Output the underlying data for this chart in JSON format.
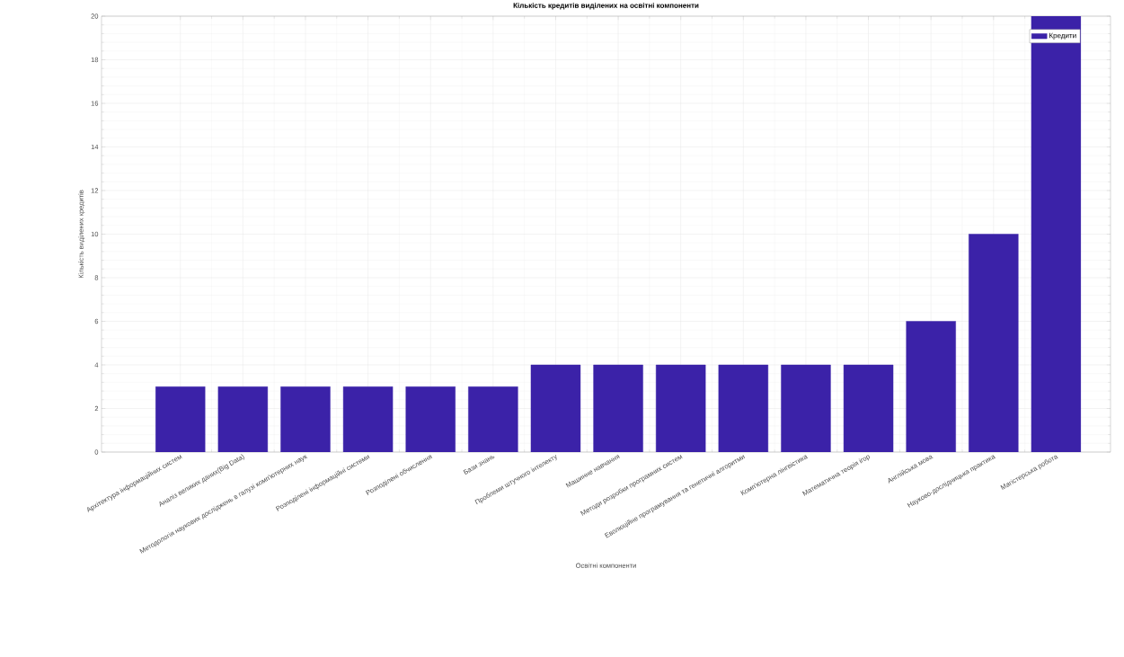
{
  "chart_data": {
    "type": "bar",
    "title": "Кількість кредитів виділених на освітні компоненти",
    "xlabel": "Освітні компоненти",
    "ylabel": "Кількість виділених кредитів",
    "categories": [
      "Архітектура інформаційних систем",
      "Аналіз великих даних(Big Data)",
      "Методологія наукових досліджень в галузі комп'ютерних наук",
      "Розподілені інформаційні системи",
      "Розподілені обчислення",
      "Бази знань",
      "Проблеми штучного інтелекту",
      "Машинне навчання",
      "Методи розробки програмних систем",
      "Еволюційне програмування та генетичні алгоритми",
      "Комп'ютерна лінгвістика",
      "Математична теорія ігор",
      "Англійська мова",
      "Науково-дослідницька практика",
      "Магістерська робота"
    ],
    "series": [
      {
        "name": "Кредити",
        "color": "#3b22a8",
        "values": [
          3,
          3,
          3,
          3,
          3,
          3,
          4,
          4,
          4,
          4,
          4,
          4,
          6,
          10,
          20
        ]
      }
    ],
    "ylim": [
      0,
      20
    ],
    "yticks": [
      0,
      2,
      4,
      6,
      8,
      10,
      12,
      14,
      16,
      18,
      20
    ],
    "grid": true,
    "legend": "top right"
  }
}
